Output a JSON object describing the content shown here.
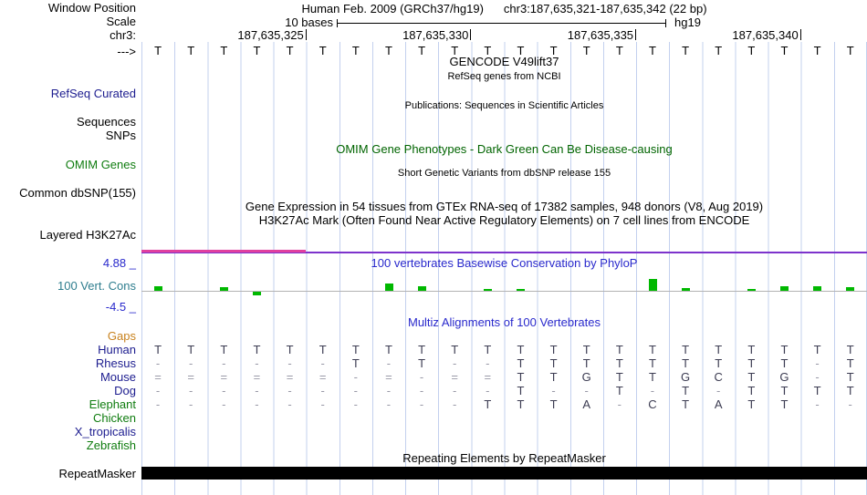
{
  "region": {
    "chrom": "chr3",
    "start": 187635321,
    "end": 187635342,
    "width_bp": 22
  },
  "header": {
    "assembly_label": "Human Feb. 2009 (GRCh37/hg19)",
    "position_label": "chr3:187,635,321-187,635,342 (22 bp)"
  },
  "scale": {
    "label": "10 bases",
    "assembly": "hg19"
  },
  "ruler": {
    "ticks": [
      {
        "pos": 187635325,
        "label": "187,635,325"
      },
      {
        "pos": 187635330,
        "label": "187,635,330"
      },
      {
        "pos": 187635335,
        "label": "187,635,335"
      },
      {
        "pos": 187635340,
        "label": "187,635,340"
      }
    ]
  },
  "left_labels": {
    "window_position": "Window Position",
    "scale": "Scale",
    "chrom": "chr3:",
    "strand_arrow": "--->",
    "refseq_curated": "RefSeq Curated",
    "sequences": "Sequences",
    "snps": "SNPs",
    "omim_genes": "OMIM Genes",
    "common_dbsnp": "Common dbSNP(155)",
    "layered_h3k27ac": "Layered H3K27Ac",
    "vert_cons": "100 Vert. Cons",
    "repeatmasker": "RepeatMasker"
  },
  "titles": {
    "gencode": "GENCODE V49lift37",
    "refseq_sub": "RefSeq genes from NCBI",
    "publications": "Publications: Sequences in Scientific Articles",
    "omim": "OMIM Gene Phenotypes - Dark Green Can Be Disease-causing",
    "dbsnp": "Short Genetic Variants from dbSNP release 155",
    "gtex": "Gene Expression in 54 tissues from GTEx RNA-seq of 17382 samples, 948 donors (V8, Aug 2019)",
    "h3k27ac": "H3K27Ac Mark (Often Found Near Active Regulatory Elements) on 7 cell lines from ENCODE",
    "phylop": "100 vertebrates Basewise Conservation by PhyloP",
    "multiz": "Multiz Alignments of 100 Vertebrates",
    "repeatmasker": "Repeating Elements by RepeatMasker"
  },
  "sequence": {
    "bases": [
      "T",
      "T",
      "T",
      "T",
      "T",
      "T",
      "T",
      "T",
      "T",
      "T",
      "T",
      "T",
      "T",
      "T",
      "T",
      "T",
      "T",
      "T",
      "T",
      "T",
      "T",
      "T"
    ]
  },
  "conservation": {
    "max_label": "4.88 _",
    "min_label": "-4.5 _",
    "max": 4.88,
    "min": -4.5,
    "values": [
      1.0,
      0,
      0.8,
      -0.8,
      0,
      0,
      0,
      1.6,
      1.0,
      0,
      0.4,
      0.4,
      0,
      0,
      0,
      2.6,
      0.6,
      0,
      0.4,
      1.0,
      1.0,
      0.8
    ]
  },
  "multiz_rows": [
    {
      "name": "Gaps",
      "color": "#c8821e",
      "bases": []
    },
    {
      "name": "Human",
      "color": "#1c1c8f",
      "bases": [
        "T",
        "T",
        "T",
        "T",
        "T",
        "T",
        "T",
        "T",
        "T",
        "T",
        "T",
        "T",
        "T",
        "T",
        "T",
        "T",
        "T",
        "T",
        "T",
        "T",
        "T",
        "T"
      ]
    },
    {
      "name": "Rhesus",
      "color": "#1c1c8f",
      "bases": [
        "-",
        "-",
        "-",
        "-",
        "-",
        "-",
        "T",
        "-",
        "T",
        "-",
        "-",
        "T",
        "T",
        "T",
        "T",
        "T",
        "T",
        "T",
        "T",
        "T",
        "-",
        "T"
      ]
    },
    {
      "name": "Mouse",
      "color": "#1c1c8f",
      "bases": [
        "=",
        "=",
        "=",
        "=",
        "=",
        "=",
        "-",
        "=",
        "-",
        "=",
        "=",
        "T",
        "T",
        "G",
        "T",
        "T",
        "G",
        "C",
        "T",
        "G",
        "-",
        "T"
      ]
    },
    {
      "name": "Dog",
      "color": "#1c1c8f",
      "bases": [
        "-",
        "-",
        "-",
        "-",
        "-",
        "-",
        "-",
        "-",
        "-",
        "-",
        "-",
        "T",
        "-",
        "-",
        "T",
        "-",
        "T",
        "-",
        "T",
        "T",
        "T",
        "T"
      ]
    },
    {
      "name": "Elephant",
      "color": "#0f7c0f",
      "bases": [
        "-",
        "-",
        "-",
        "-",
        "-",
        "-",
        "-",
        "-",
        "-",
        "-",
        "T",
        "T",
        "T",
        "A",
        "-",
        "C",
        "T",
        "A",
        "T",
        "T",
        "-",
        "-"
      ]
    },
    {
      "name": "Chicken",
      "color": "#0f7c0f",
      "bases": []
    },
    {
      "name": "X_tropicalis",
      "color": "#1c1c8f",
      "bases": []
    },
    {
      "name": "Zebrafish",
      "color": "#0f7c0f",
      "bases": []
    }
  ],
  "colors": {
    "grid_line": "#c3d0ee",
    "conservation_bar": "#00b800",
    "h3k27ac_violet": "#7d33cc",
    "h3k27ac_pink": "#e0409f",
    "track_label_navy": "#1c1c8f",
    "track_label_green": "#0f7c0f",
    "omim_title_green": "#006400",
    "title_blue": "#2929cc",
    "vert_cons_teal": "#2e7d8e",
    "gaps_orange": "#c8821e",
    "repeatmasker_bar": "#000000"
  }
}
